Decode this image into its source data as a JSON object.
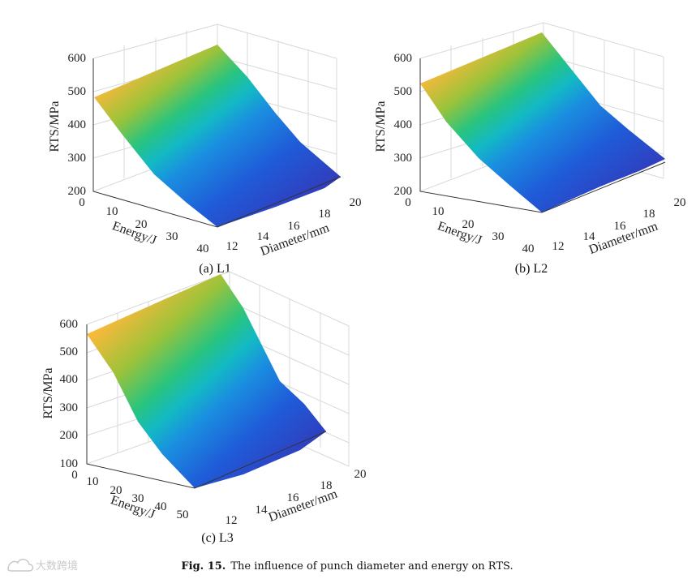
{
  "figure": {
    "caption_label": "Fig. 15.",
    "caption_text": "The influence of punch diameter and energy on RTS."
  },
  "watermark": {
    "text": "大数跨境",
    "icon": "cloud-logo-icon"
  },
  "colormap": [
    "#3e26a8",
    "#1f5bd8",
    "#1a8fe0",
    "#13b9c4",
    "#29c47e",
    "#9bc33a",
    "#f5b93b",
    "#f9d529"
  ],
  "chart_data": [
    {
      "type": "surface",
      "sublabel": "(a) L1",
      "zlabel": "RTS/MPa",
      "xlabel": "Energy/J",
      "ylabel": "Diameter/mm",
      "z_ticks": [
        "200",
        "300",
        "400",
        "500",
        "600"
      ],
      "x_ticks": [
        "0",
        "10",
        "20",
        "30",
        "40"
      ],
      "y_ticks": [
        "12",
        "14",
        "16",
        "18",
        "20"
      ],
      "zlim": [
        200,
        600
      ],
      "xlim": [
        0,
        40
      ],
      "ylim": [
        12,
        20
      ],
      "corners": {
        "e0_d12": 480,
        "e0_d20": 630,
        "e40_d12": 200,
        "e40_d20": 240
      }
    },
    {
      "type": "surface",
      "sublabel": "(b) L2",
      "zlabel": "RTS/MPa",
      "xlabel": "Energy/J",
      "ylabel": "Diameter/mm",
      "z_ticks": [
        "200",
        "300",
        "400",
        "500",
        "600"
      ],
      "x_ticks": [
        "0",
        "10",
        "20",
        "30",
        "40"
      ],
      "y_ticks": [
        "12",
        "14",
        "16",
        "18",
        "20"
      ],
      "zlim": [
        200,
        600
      ],
      "xlim": [
        0,
        40
      ],
      "ylim": [
        12,
        20
      ],
      "corners": {
        "e0_d12": 520,
        "e0_d20": 680,
        "e40_d12": 200,
        "e40_d20": 290
      }
    },
    {
      "type": "surface",
      "sublabel": "(c) L3",
      "zlabel": "RTS/MPa",
      "xlabel": "Energy/J",
      "ylabel": "Diameter/mm",
      "z_ticks": [
        "100",
        "200",
        "300",
        "400",
        "500",
        "600"
      ],
      "x_ticks": [
        "0",
        "10",
        "20",
        "30",
        "40",
        "50"
      ],
      "y_ticks": [
        "12",
        "14",
        "16",
        "18",
        "20"
      ],
      "zlim": [
        100,
        600
      ],
      "xlim": [
        0,
        50
      ],
      "ylim": [
        12,
        20
      ],
      "corners": {
        "e0_d12": 570,
        "e0_d20": 690,
        "e50_d12": 100,
        "e50_d20": 220
      }
    }
  ]
}
